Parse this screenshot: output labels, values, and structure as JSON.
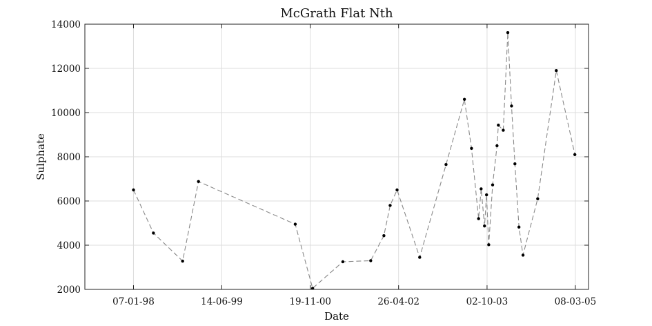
{
  "chart_data": {
    "type": "line",
    "title": "McGrath Flat Nth",
    "xlabel": "Date",
    "ylabel": "Sulphate",
    "x_tick_labels": [
      "07-01-98",
      "14-06-99",
      "19-11-00",
      "26-04-02",
      "02-10-03",
      "08-03-05"
    ],
    "x_tick_dates": [
      "1998-01-07",
      "1999-06-14",
      "2000-11-19",
      "2002-04-26",
      "2003-10-02",
      "2005-03-08"
    ],
    "xlim": [
      "1997-03-25",
      "2005-05-25"
    ],
    "y_ticks": [
      2000,
      4000,
      6000,
      8000,
      10000,
      12000,
      14000
    ],
    "y_tick_labels": [
      "2000",
      "4000",
      "6000",
      "8000",
      "10000",
      "12000",
      "14000"
    ],
    "ylim": [
      2000,
      14000
    ],
    "grid": true,
    "line_style": "dashed",
    "line_color": "#888888",
    "marker_color": "#000000",
    "series": [
      {
        "points": [
          {
            "x": "1998-01-07",
            "y": 6500
          },
          {
            "x": "1998-05-05",
            "y": 4550
          },
          {
            "x": "1998-10-25",
            "y": 3280
          },
          {
            "x": "1999-01-27",
            "y": 6880
          },
          {
            "x": "2000-08-22",
            "y": 4950
          },
          {
            "x": "2000-12-03",
            "y": 2050
          },
          {
            "x": "2001-05-31",
            "y": 3250
          },
          {
            "x": "2001-11-12",
            "y": 3300
          },
          {
            "x": "2002-01-29",
            "y": 4430
          },
          {
            "x": "2002-03-07",
            "y": 5800
          },
          {
            "x": "2002-04-17",
            "y": 6500
          },
          {
            "x": "2002-08-29",
            "y": 3450
          },
          {
            "x": "2003-02-01",
            "y": 7650
          },
          {
            "x": "2003-05-21",
            "y": 10600
          },
          {
            "x": "2003-07-02",
            "y": 8380
          },
          {
            "x": "2003-08-13",
            "y": 5200
          },
          {
            "x": "2003-08-28",
            "y": 6550
          },
          {
            "x": "2003-09-17",
            "y": 4870
          },
          {
            "x": "2003-09-29",
            "y": 6280
          },
          {
            "x": "2003-10-12",
            "y": 4020
          },
          {
            "x": "2003-11-04",
            "y": 6730
          },
          {
            "x": "2003-11-30",
            "y": 8500
          },
          {
            "x": "2003-12-08",
            "y": 9430
          },
          {
            "x": "2004-01-06",
            "y": 9200
          },
          {
            "x": "2004-02-02",
            "y": 13620
          },
          {
            "x": "2004-02-24",
            "y": 10300
          },
          {
            "x": "2004-03-15",
            "y": 7680
          },
          {
            "x": "2004-04-08",
            "y": 4820
          },
          {
            "x": "2004-05-02",
            "y": 3550
          },
          {
            "x": "2004-07-28",
            "y": 6100
          },
          {
            "x": "2004-11-15",
            "y": 11900
          },
          {
            "x": "2005-03-05",
            "y": 8100
          }
        ]
      }
    ]
  }
}
